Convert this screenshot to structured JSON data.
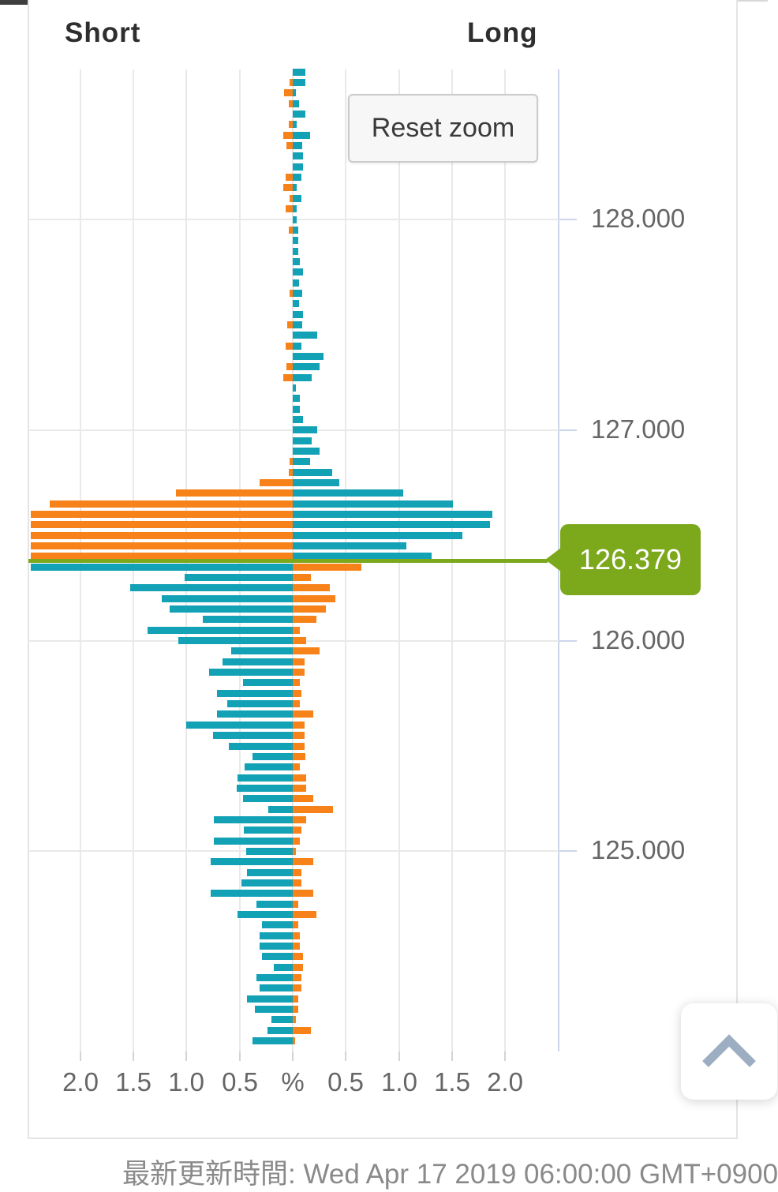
{
  "ui": {
    "reset_zoom_label": "Reset zoom",
    "current_price_label": "126.379",
    "footer_update_time": "最新更新時間: Wed Apr 17 2019 06:00:00 GMT+0900"
  },
  "chart_data": {
    "type": "bar",
    "orientation": "horizontal-pyramid",
    "title": "",
    "current_price": 126.379,
    "x_axis": {
      "label_left": "Short",
      "label_right": "Long",
      "unit": "%",
      "tick_labels": [
        "2.0",
        "1.5",
        "1.0",
        "0.5",
        "%",
        "0.5",
        "1.0",
        "1.5",
        "2.0"
      ],
      "tick_values": [
        -2,
        -1.5,
        -1,
        -0.5,
        0,
        0.5,
        1,
        1.5,
        2
      ],
      "range": [
        -2.5,
        2.5
      ],
      "grid": true
    },
    "y_axis": {
      "side": "right",
      "tick_labels": [
        "128.000",
        "127.000",
        "126.000",
        "125.000"
      ],
      "tick_values": [
        128,
        127,
        126,
        125
      ],
      "range": [
        124.05,
        128.71
      ],
      "bucket_size": 0.05,
      "grid": true
    },
    "colors": {
      "orange": "#F8821A",
      "teal": "#12A1B5",
      "green": "#7CA81C",
      "grid": "#E9E9E9",
      "axis_line": "#CCD6EB",
      "label_gray": "#666666"
    },
    "color_rule": "above current price: short=orange long=teal; below current price: short=teal long=orange",
    "row_format": [
      "price",
      "short_pct",
      "long_pct"
    ],
    "rows": [
      [
        128.7,
        0,
        0.12
      ],
      [
        128.65,
        0.03,
        0.12
      ],
      [
        128.6,
        0.08,
        0.03
      ],
      [
        128.55,
        0.04,
        0.06
      ],
      [
        128.5,
        0,
        0.12
      ],
      [
        128.45,
        0.04,
        0.04
      ],
      [
        128.4,
        0.09,
        0.16
      ],
      [
        128.35,
        0.06,
        0.09
      ],
      [
        128.3,
        0,
        0.1
      ],
      [
        128.25,
        0,
        0.1
      ],
      [
        128.2,
        0.07,
        0.08
      ],
      [
        128.15,
        0.09,
        0.04
      ],
      [
        128.1,
        0.03,
        0.08
      ],
      [
        128.05,
        0.07,
        0.04
      ],
      [
        128.0,
        0,
        0.04
      ],
      [
        127.95,
        0.04,
        0.05
      ],
      [
        127.9,
        0,
        0.05
      ],
      [
        127.85,
        0,
        0.05
      ],
      [
        127.8,
        0,
        0.07
      ],
      [
        127.75,
        0,
        0.1
      ],
      [
        127.7,
        0,
        0.06
      ],
      [
        127.65,
        0.03,
        0.09
      ],
      [
        127.6,
        0,
        0.06
      ],
      [
        127.55,
        0,
        0.1
      ],
      [
        127.5,
        0.05,
        0.09
      ],
      [
        127.45,
        0,
        0.23
      ],
      [
        127.4,
        0.07,
        0.08
      ],
      [
        127.35,
        0,
        0.29
      ],
      [
        127.3,
        0.06,
        0.25
      ],
      [
        127.25,
        0.09,
        0.18
      ],
      [
        127.2,
        0,
        0.03
      ],
      [
        127.15,
        0,
        0.07
      ],
      [
        127.1,
        0,
        0.07
      ],
      [
        127.05,
        0,
        0.1
      ],
      [
        127.0,
        0,
        0.23
      ],
      [
        126.95,
        0,
        0.18
      ],
      [
        126.9,
        0,
        0.25
      ],
      [
        126.85,
        0.03,
        0.16
      ],
      [
        126.8,
        0.04,
        0.37
      ],
      [
        126.75,
        0.31,
        0.44
      ],
      [
        126.7,
        1.1,
        1.04
      ],
      [
        126.65,
        2.29,
        1.51
      ],
      [
        126.6,
        2.47,
        1.88
      ],
      [
        126.55,
        2.47,
        1.86
      ],
      [
        126.5,
        2.47,
        1.6
      ],
      [
        126.45,
        2.47,
        1.07
      ],
      [
        126.4,
        2.47,
        1.31
      ],
      [
        126.35,
        2.47,
        0.65
      ],
      [
        126.3,
        1.02,
        0.17
      ],
      [
        126.25,
        1.53,
        0.35
      ],
      [
        126.2,
        1.23,
        0.4
      ],
      [
        126.15,
        1.16,
        0.31
      ],
      [
        126.1,
        0.85,
        0.22
      ],
      [
        126.05,
        1.37,
        0.07
      ],
      [
        126.0,
        1.08,
        0.13
      ],
      [
        125.95,
        0.58,
        0.25
      ],
      [
        125.9,
        0.66,
        0.11
      ],
      [
        125.85,
        0.79,
        0.11
      ],
      [
        125.8,
        0.47,
        0.07
      ],
      [
        125.75,
        0.71,
        0.08
      ],
      [
        125.7,
        0.62,
        0.07
      ],
      [
        125.65,
        0.71,
        0.19
      ],
      [
        125.6,
        1.0,
        0.11
      ],
      [
        125.55,
        0.75,
        0.11
      ],
      [
        125.5,
        0.6,
        0.11
      ],
      [
        125.45,
        0.38,
        0.12
      ],
      [
        125.4,
        0.45,
        0.07
      ],
      [
        125.35,
        0.52,
        0.13
      ],
      [
        125.3,
        0.53,
        0.13
      ],
      [
        125.25,
        0.47,
        0.19
      ],
      [
        125.2,
        0.23,
        0.38
      ],
      [
        125.15,
        0.74,
        0.13
      ],
      [
        125.1,
        0.46,
        0.08
      ],
      [
        125.05,
        0.74,
        0.07
      ],
      [
        125.0,
        0.44,
        0.03
      ],
      [
        124.95,
        0.77,
        0.19
      ],
      [
        124.9,
        0.43,
        0.08
      ],
      [
        124.85,
        0.48,
        0.08
      ],
      [
        124.8,
        0.77,
        0.19
      ],
      [
        124.75,
        0.34,
        0.05
      ],
      [
        124.7,
        0.52,
        0.22
      ],
      [
        124.65,
        0.29,
        0.05
      ],
      [
        124.6,
        0.31,
        0.07
      ],
      [
        124.55,
        0.31,
        0.07
      ],
      [
        124.5,
        0.29,
        0.1
      ],
      [
        124.45,
        0.18,
        0.1
      ],
      [
        124.4,
        0.34,
        0.08
      ],
      [
        124.35,
        0.31,
        0.08
      ],
      [
        124.3,
        0.43,
        0.05
      ],
      [
        124.25,
        0.36,
        0.05
      ],
      [
        124.2,
        0.2,
        0.03
      ],
      [
        124.15,
        0.24,
        0.17
      ],
      [
        124.1,
        0.38,
        0.02
      ]
    ]
  }
}
